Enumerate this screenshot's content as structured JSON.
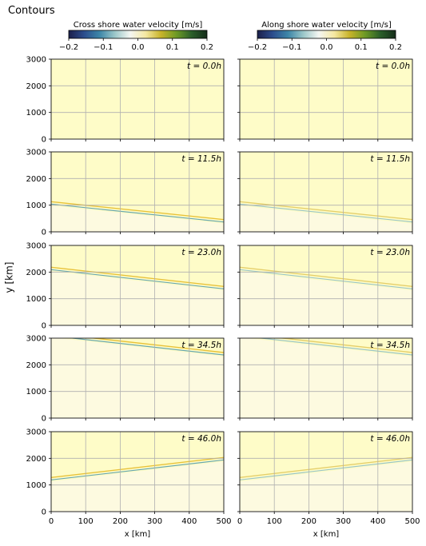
{
  "figure": {
    "title": "Contours",
    "ylabel": "y [km]",
    "xlabel": "x [km]"
  },
  "colorbars": [
    {
      "label": "Cross shore water velocity [m/s]",
      "ticks": [
        "−0.2",
        "−0.1",
        "0.0",
        "0.1",
        "0.2"
      ],
      "range": [
        -0.2,
        0.2
      ]
    },
    {
      "label": "Along shore water velocity [m/s]",
      "ticks": [
        "−0.2",
        "−0.1",
        "0.0",
        "0.1",
        "0.2"
      ],
      "range": [
        -0.2,
        0.2
      ]
    }
  ],
  "colormap": [
    "#1b1f4a",
    "#2c4d8d",
    "#3d86a8",
    "#9cc7c9",
    "#f4f6f2",
    "#f5e8a2",
    "#c8b32a",
    "#6e9a25",
    "#2b5e2a",
    "#152d1a"
  ],
  "chart_data": {
    "type": "heatmap",
    "xlim": [
      0,
      500
    ],
    "ylim": [
      0,
      3000
    ],
    "x_ticks": [
      0,
      100,
      200,
      300,
      400,
      500
    ],
    "y_ticks": [
      0,
      1000,
      2000,
      3000
    ],
    "grid": true,
    "background_color": "#fefcc8",
    "columns": [
      "Cross shore water velocity [m/s]",
      "Along shore water velocity [m/s]"
    ],
    "panels": [
      {
        "time_label": "t = 0.0h",
        "front": null
      },
      {
        "time_label": "t = 11.5h",
        "front": {
          "y_at_x0": 1100,
          "y_at_x500": 430
        }
      },
      {
        "time_label": "t = 23.0h",
        "front": {
          "y_at_x0": 2150,
          "y_at_x500": 1430
        }
      },
      {
        "time_label": "t = 34.5h",
        "front": {
          "y_at_x0": 3150,
          "y_at_x500": 2430
        }
      },
      {
        "time_label": "t = 46.0h",
        "front": {
          "y_at_x0": 1250,
          "y_at_x500": 2000
        }
      }
    ]
  }
}
